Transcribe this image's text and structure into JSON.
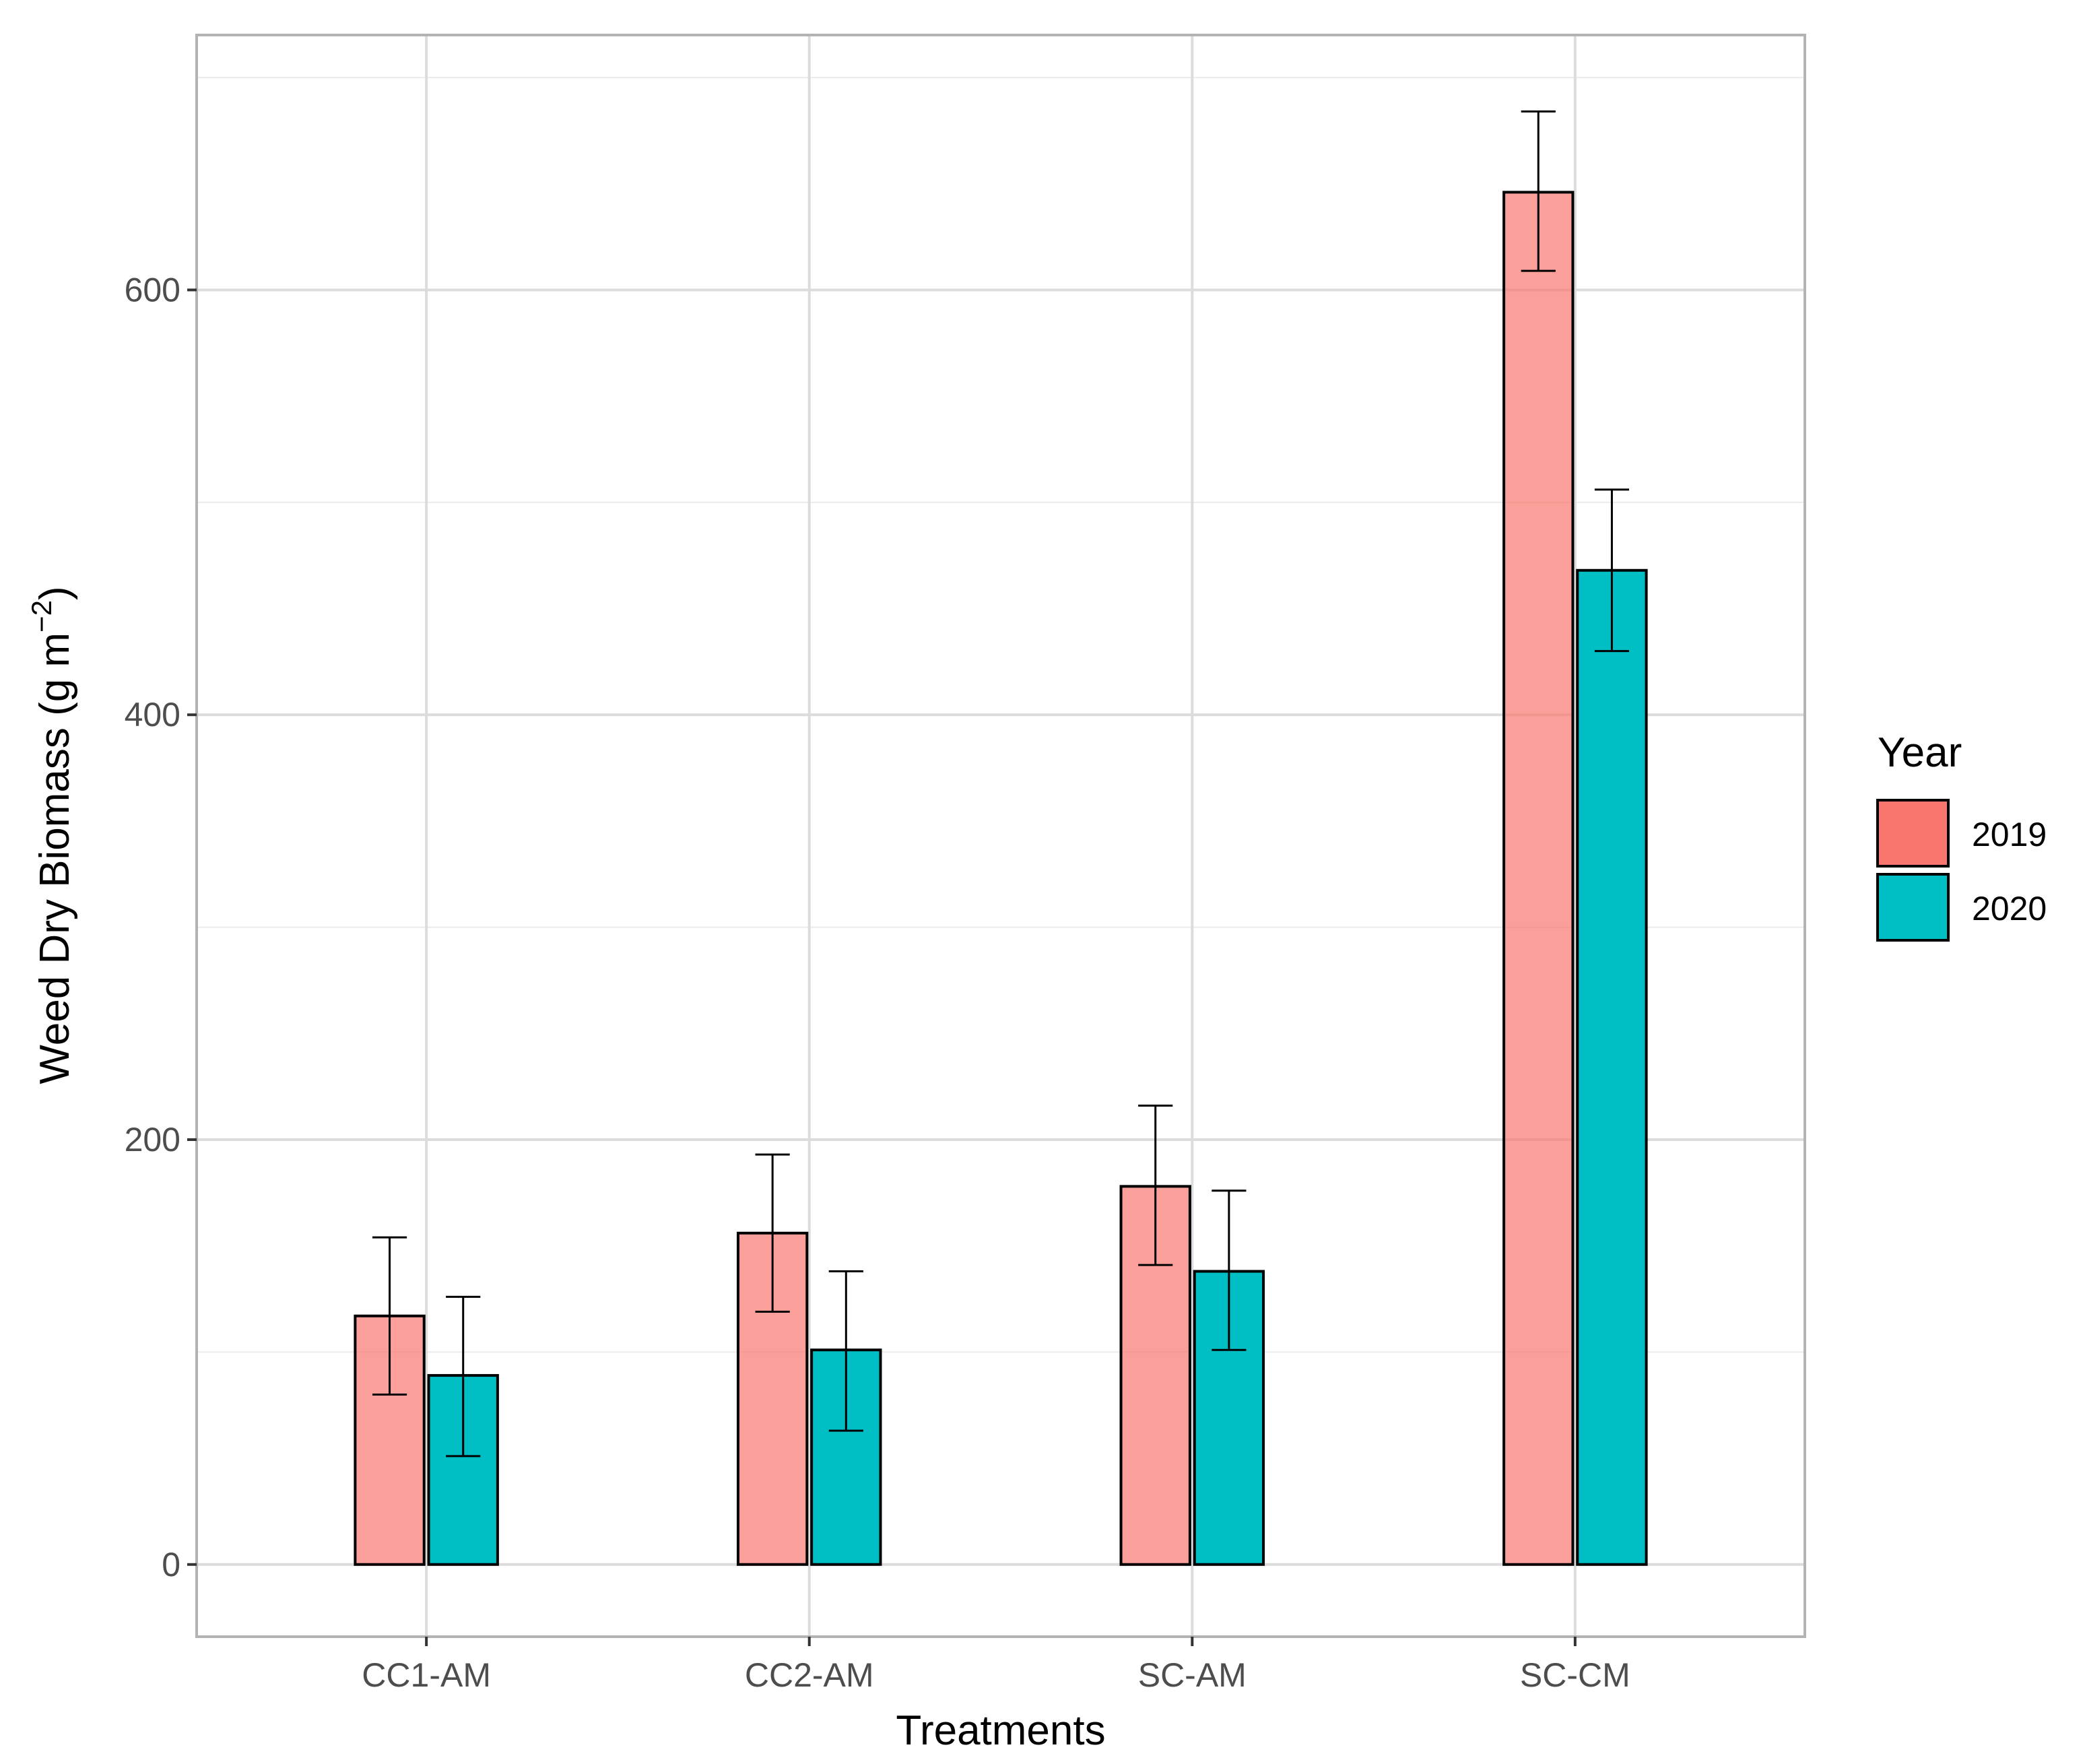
{
  "chart_data": {
    "type": "bar",
    "title": "",
    "xlabel": "Treatments",
    "ylabel": "Weed Dry Biomass (g m",
    "ylabel_sup": "−2",
    "ylabel_close": ")",
    "categories": [
      "CC1-AM",
      "CC2-AM",
      "SC-AM",
      "SC-CM"
    ],
    "series": [
      {
        "name": "2019",
        "color": "#F8766D",
        "values": [
          117,
          156,
          178,
          646
        ],
        "err_low": [
          80,
          119,
          141,
          609
        ],
        "err_high": [
          154,
          193,
          216,
          684
        ]
      },
      {
        "name": "2020",
        "color": "#00BFC4",
        "values": [
          89,
          101,
          138,
          468
        ],
        "err_low": [
          51,
          63,
          101,
          430
        ],
        "err_high": [
          126,
          138,
          176,
          506
        ]
      }
    ],
    "ylim": [
      -34,
      720
    ],
    "yticks": [
      0,
      200,
      400,
      600
    ],
    "ytick_labels": [
      "0",
      "200",
      "400",
      "600"
    ],
    "legend": {
      "title": "Year",
      "position": "right"
    },
    "grid": true
  }
}
